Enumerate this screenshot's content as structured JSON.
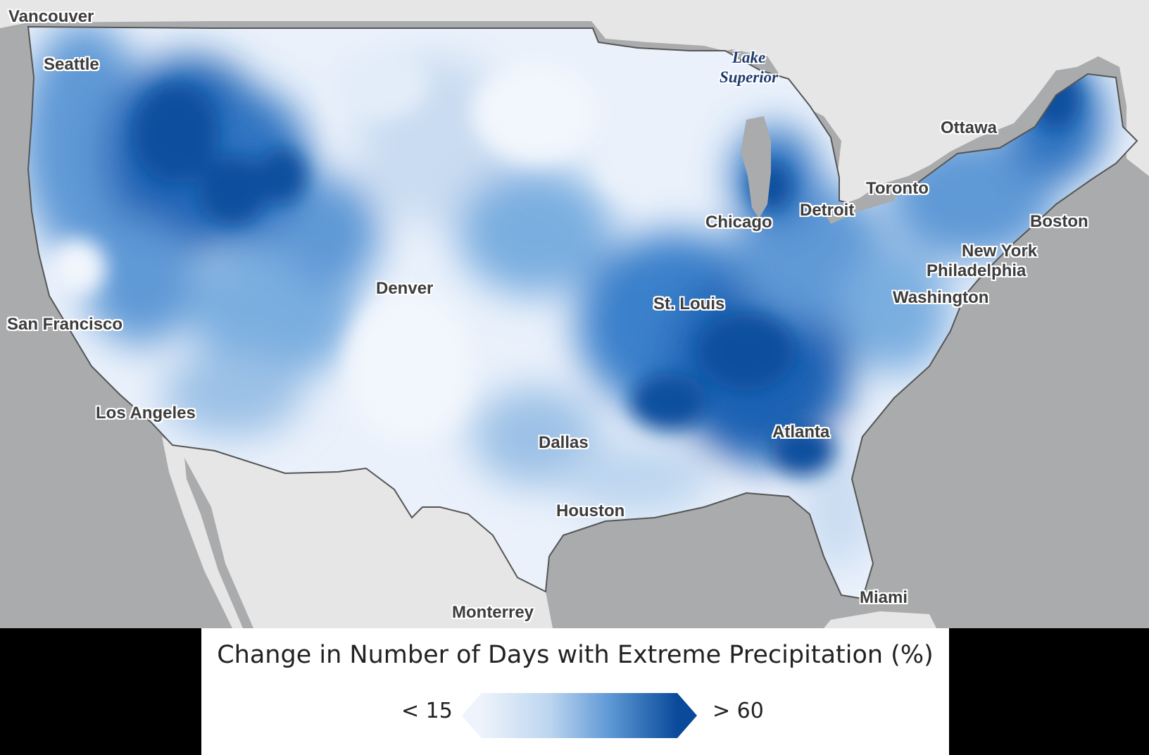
{
  "legend": {
    "title": "Change in Number of Days with Extreme Precipitation (%)",
    "min_label": "< 15",
    "max_label": "> 60",
    "color_low": "#eef3fc",
    "color_high": "#0a4a9a"
  },
  "map": {
    "colors": {
      "ocean": "#a9abac",
      "foreign_land": "#e6e6e6",
      "lakes": "#a9abac",
      "border": "#555555",
      "very_light": "#eaf1fb",
      "light": "#c9dcf1",
      "medium_light": "#9cc1e6",
      "medium": "#5f99d6",
      "medium_dark": "#2f73c1",
      "dark": "#0d4f9e"
    },
    "cities": [
      {
        "id": "vancouver",
        "name": "Vancouver"
      },
      {
        "id": "seattle",
        "name": "Seattle"
      },
      {
        "id": "san-francisco",
        "name": "San Francisco"
      },
      {
        "id": "los-angeles",
        "name": "Los Angeles"
      },
      {
        "id": "denver",
        "name": "Denver"
      },
      {
        "id": "dallas",
        "name": "Dallas"
      },
      {
        "id": "houston",
        "name": "Houston"
      },
      {
        "id": "monterrey",
        "name": "Monterrey"
      },
      {
        "id": "st-louis",
        "name": "St. Louis"
      },
      {
        "id": "chicago",
        "name": "Chicago"
      },
      {
        "id": "detroit",
        "name": "Detroit"
      },
      {
        "id": "toronto",
        "name": "Toronto"
      },
      {
        "id": "ottawa",
        "name": "Ottawa"
      },
      {
        "id": "boston",
        "name": "Boston"
      },
      {
        "id": "new-york",
        "name": "New York"
      },
      {
        "id": "philadelphia",
        "name": "Philadelphia"
      },
      {
        "id": "washington",
        "name": "Washington"
      },
      {
        "id": "atlanta",
        "name": "Atlanta"
      },
      {
        "id": "miami",
        "name": "Miami"
      }
    ],
    "water_labels": [
      {
        "id": "lake-superior",
        "line1": "Lake",
        "line2": "Superior"
      }
    ]
  }
}
